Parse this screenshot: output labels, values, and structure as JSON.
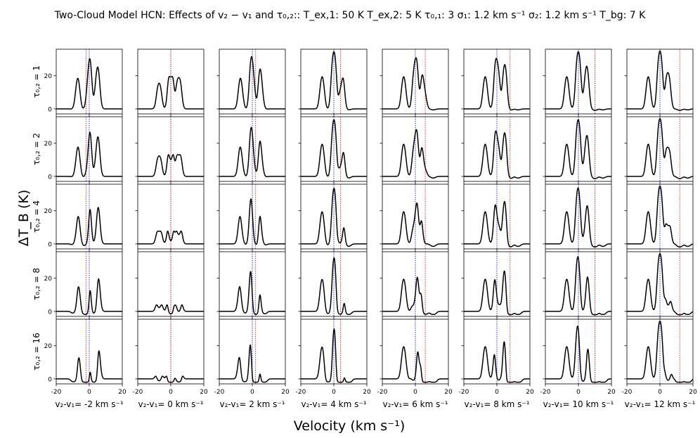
{
  "chart_data": {
    "type": "line",
    "title": "Two-Cloud Model HCN: Effects of v₂ − v₁ and τ₀,₂::   T_ex,1: 50 K   T_ex,2: 5 K   τ₀,₁: 3   σ₁: 1.2 km s⁻¹   σ₂: 1.2 km s⁻¹   T_bg: 7 K",
    "xlabel": "Velocity (km s⁻¹)",
    "ylabel": "ΔT_B (K)",
    "xlim": [
      -20,
      20
    ],
    "ylim": [
      -3,
      36
    ],
    "x_ticks": [
      -20,
      0,
      20
    ],
    "y_ticks": [
      0,
      20
    ],
    "grid": false,
    "column_labels": [
      "v₂-v₁= -2 km s⁻¹",
      "v₂-v₁= 0 km s⁻¹",
      "v₂-v₁= 2 km s⁻¹",
      "v₂-v₁= 4 km s⁻¹",
      "v₂-v₁= 6 km s⁻¹",
      "v₂-v₁= 8 km s⁻¹",
      "v₂-v₁= 10 km s⁻¹",
      "v₂-v₁= 12 km s⁻¹"
    ],
    "row_labels": [
      "τ₀,₂ = 1",
      "τ₀,₂ = 2",
      "τ₀,₂ = 4",
      "τ₀,₂ = 8",
      "τ₀,₂ = 16"
    ],
    "v_offsets": [
      -2,
      0,
      2,
      4,
      6,
      8,
      10,
      12
    ],
    "tau2_values": [
      1,
      2,
      4,
      8,
      16
    ],
    "reference_lines": {
      "cloud1_velocity": 0,
      "cloud1_color": "#0000ff",
      "cloud2_color": "#ff0000"
    },
    "line_color": "#000000"
  }
}
